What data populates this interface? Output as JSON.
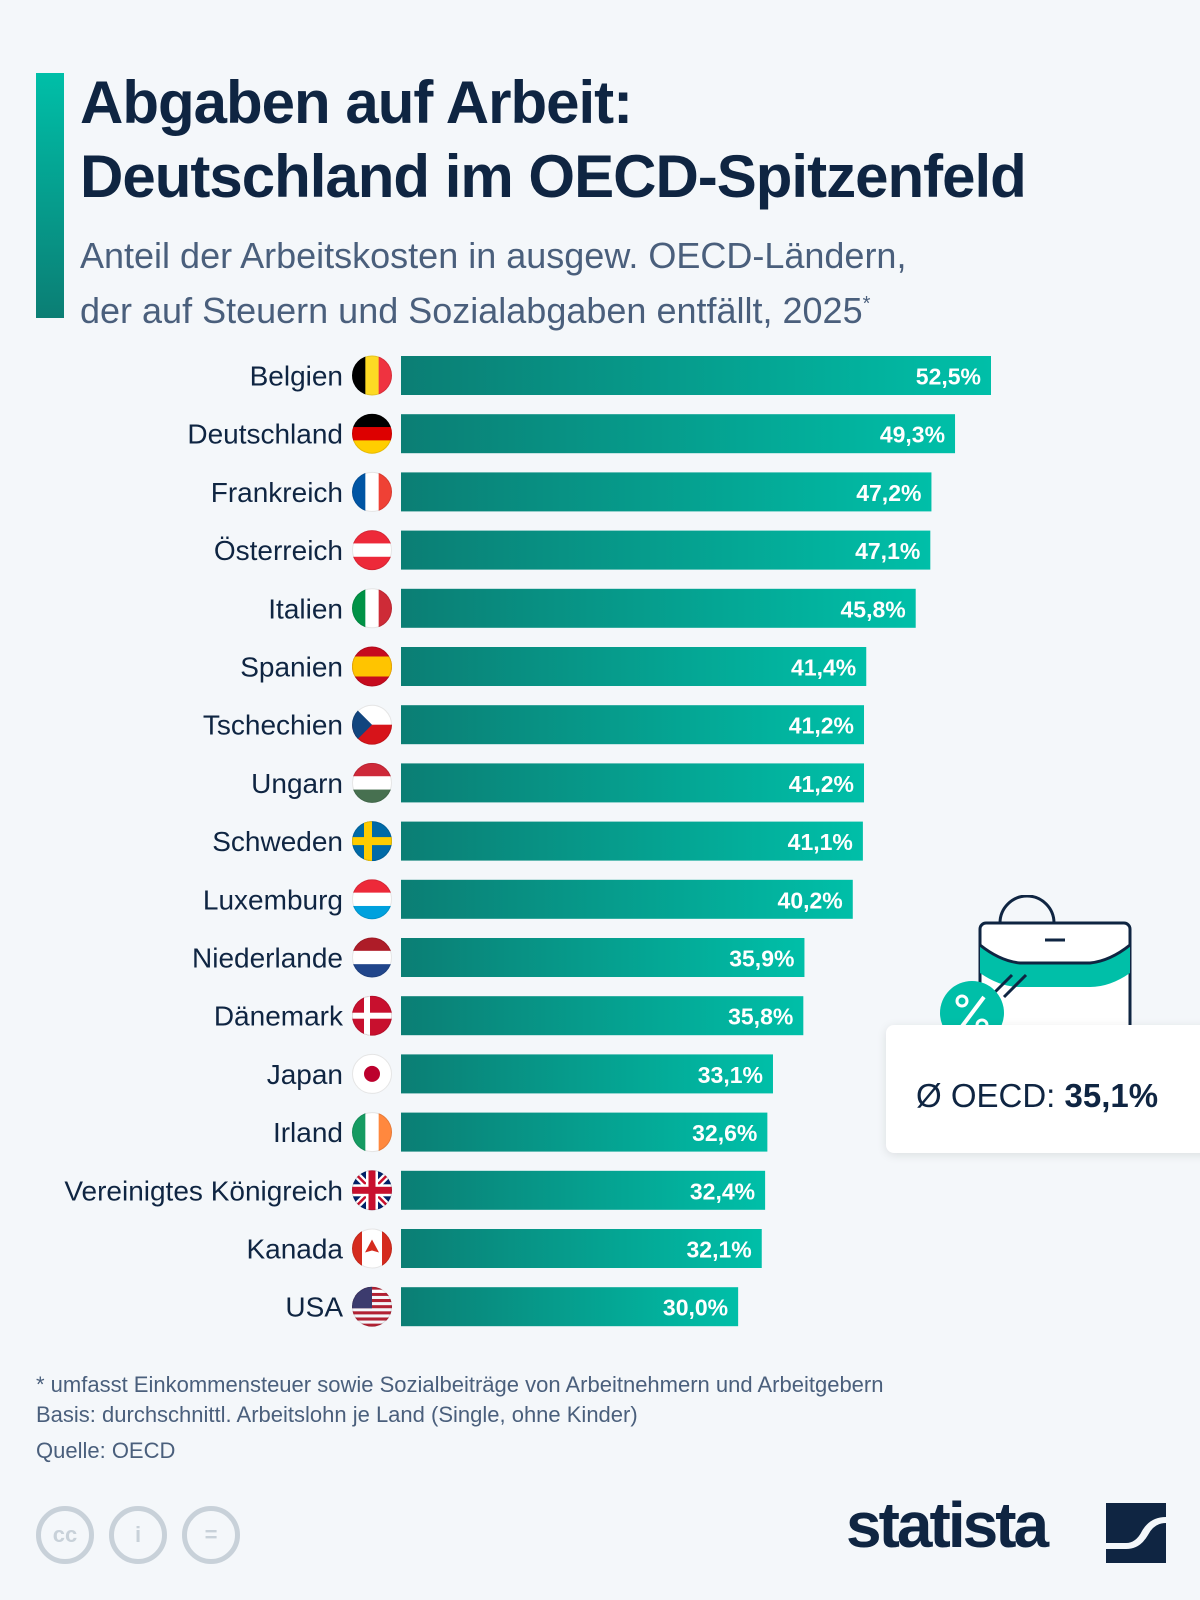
{
  "header": {
    "title_line1": "Abgaben auf Arbeit:",
    "title_line2": "Deutschland im OECD-Spitzenfeld",
    "subtitle_line1": "Anteil der Arbeitskosten in ausgew. OECD-Ländern,",
    "subtitle_line2": "der auf Steuern und Sozialabgaben entfällt, 2025",
    "subtitle_marker": "*"
  },
  "chart_data": {
    "type": "bar",
    "orientation": "horizontal",
    "xlim": [
      0,
      52.5
    ],
    "grid": false,
    "unit": "%",
    "categories": [
      "Belgien",
      "Deutschland",
      "Frankreich",
      "Österreich",
      "Italien",
      "Spanien",
      "Tschechien",
      "Ungarn",
      "Schweden",
      "Luxemburg",
      "Niederlande",
      "Dänemark",
      "Japan",
      "Irland",
      "Vereinigtes Königreich",
      "Kanada",
      "USA"
    ],
    "values": [
      52.5,
      49.3,
      47.2,
      47.1,
      45.8,
      41.4,
      41.2,
      41.2,
      41.1,
      40.2,
      35.9,
      35.8,
      33.1,
      32.6,
      32.4,
      32.1,
      30.0
    ],
    "labels": [
      "52,5%",
      "49,3%",
      "47,2%",
      "47,1%",
      "45,8%",
      "41,4%",
      "41,2%",
      "41,2%",
      "41,1%",
      "40,2%",
      "35,9%",
      "35,8%",
      "33,1%",
      "32,6%",
      "32,4%",
      "32,1%",
      "30,0%"
    ],
    "flags": [
      "be",
      "de",
      "fr",
      "at",
      "it",
      "es",
      "cz",
      "hu",
      "se",
      "lu",
      "nl",
      "dk",
      "jp",
      "ie",
      "gb",
      "ca",
      "us"
    ],
    "bar_colors": [
      "#0b7e74",
      "#00bfa8"
    ],
    "annotation": {
      "prefix": "Ø OECD:",
      "value": "35,1%"
    }
  },
  "footer": {
    "note": "* umfasst Einkommensteuer sowie Sozialbeiträge von Arbeitnehmern und Arbeitgebern",
    "basis": "Basis: durchschnittl. Arbeitslohn je Land (Single, ohne Kinder)",
    "source": "Quelle: OECD",
    "brand": "statista"
  },
  "icons": [
    "briefcase-icon",
    "percent-icon",
    "cc-icon",
    "by-icon",
    "nd-icon",
    "statista-logo"
  ]
}
